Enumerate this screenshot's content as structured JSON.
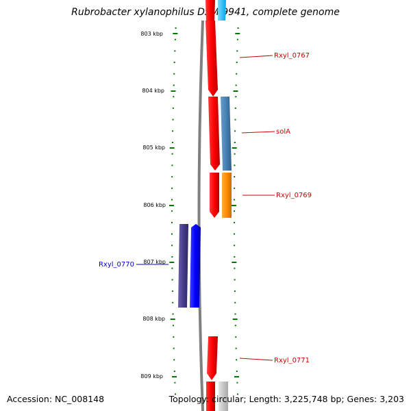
{
  "title": "Rubrobacter xylanophilus DSM 9941, complete genome",
  "accession": "Accession: NC_008148",
  "topology": "Topology: circular; Length: 3,225,748 bp; Genes: 3,203",
  "ruler_ticks": [
    "803 kbp",
    "804 kbp",
    "805 kbp",
    "806 kbp",
    "807 kbp",
    "808 kbp",
    "809 kbp"
  ],
  "genes": [
    {
      "name": "Rxyl_0767",
      "color": "#cc0000",
      "strand": "forward"
    },
    {
      "name": "solA",
      "color": "#cc0000",
      "strand": "forward"
    },
    {
      "name": "Rxyl_0769",
      "color": "#cc0000",
      "strand": "forward"
    },
    {
      "name": "Rxyl_0770",
      "color": "#0000cc",
      "strand": "reverse"
    },
    {
      "name": "Rxyl_0771",
      "color": "#cc0000",
      "strand": "forward"
    }
  ],
  "colors": {
    "forward_cds": "#ff0000",
    "reverse_cds": "#0000ff",
    "forward_feature_blue": "#4682b4",
    "forward_feature_orange": "#ff8c00",
    "reverse_feature": "#483d8b",
    "backbone": "#808080",
    "ruler": "#007700"
  }
}
